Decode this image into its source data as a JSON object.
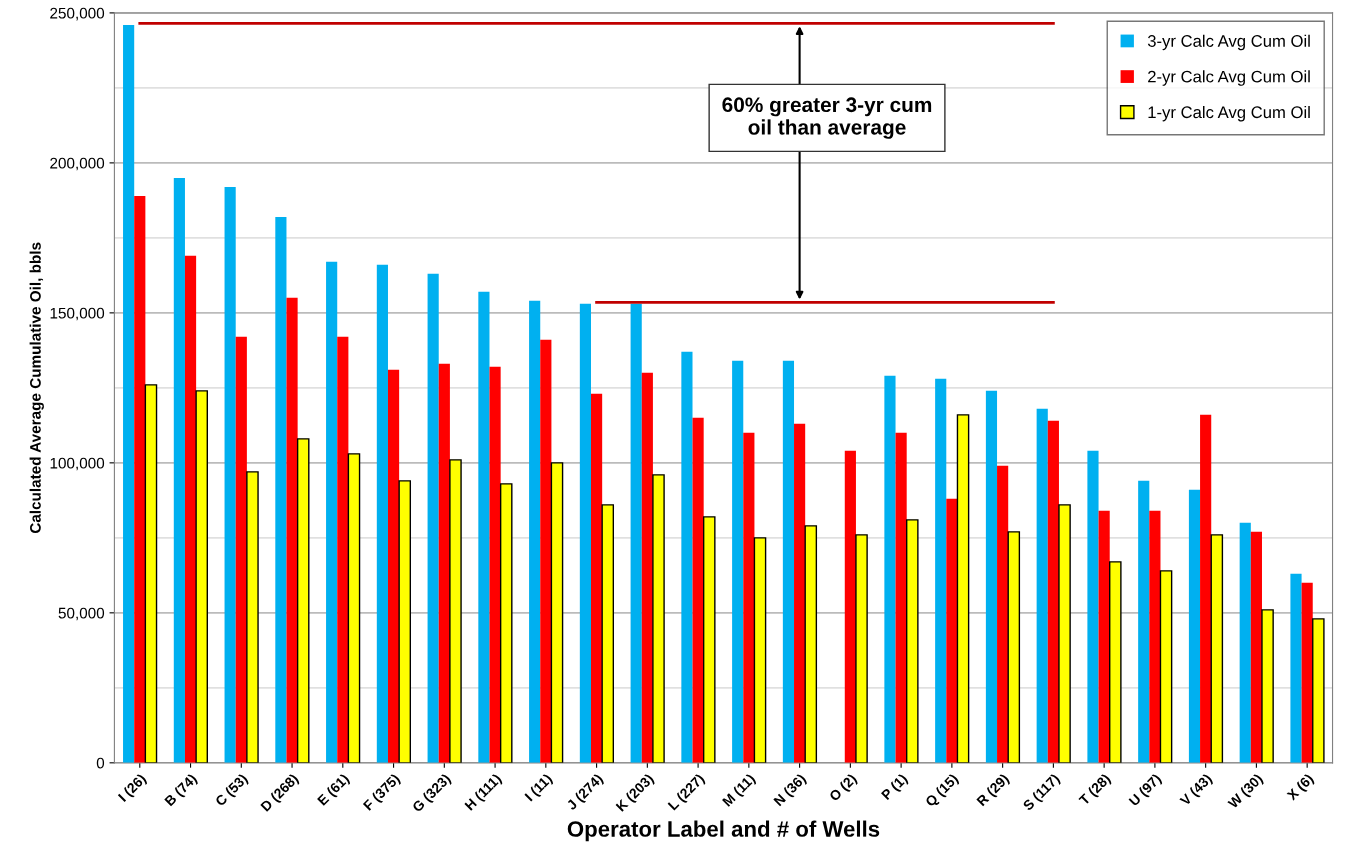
{
  "chart_data": {
    "type": "bar",
    "xlabel": "Operator Label and # of Wells",
    "ylabel": "Calculated Average Cumulative Oil, bbls",
    "categories": [
      "I (26)",
      "B (74)",
      "C (53)",
      "D (268)",
      "E (61)",
      "F (375)",
      "G (323)",
      "H (111)",
      "I (11)",
      "J (274)",
      "K (203)",
      "L (227)",
      "M (11)",
      "N (36)",
      "O (2)",
      "P (1)",
      "Q (15)",
      "R (29)",
      "S (117)",
      "T (28)",
      "U (97)",
      "V (43)",
      "W (30)",
      "X (6)"
    ],
    "series": [
      {
        "name": "3-yr Calc Avg Cum Oil",
        "color": "#00b0f0",
        "values": [
          246000,
          195000,
          192000,
          182000,
          167000,
          166000,
          163000,
          157000,
          154000,
          153000,
          153000,
          137000,
          134000,
          134000,
          null,
          129000,
          128000,
          124000,
          118000,
          104000,
          94000,
          91000,
          80000,
          63000
        ]
      },
      {
        "name": "2-yr Calc Avg Cum Oil",
        "color": "#ff0000",
        "values": [
          189000,
          169000,
          142000,
          155000,
          142000,
          131000,
          133000,
          132000,
          141000,
          123000,
          130000,
          115000,
          110000,
          113000,
          104000,
          110000,
          88000,
          99000,
          114000,
          84000,
          84000,
          116000,
          77000,
          60000
        ]
      },
      {
        "name": "1-yr Calc Avg Cum Oil",
        "color": "#ffff00",
        "values": [
          126000,
          124000,
          97000,
          108000,
          103000,
          94000,
          101000,
          93000,
          100000,
          86000,
          96000,
          82000,
          75000,
          79000,
          76000,
          81000,
          116000,
          77000,
          86000,
          67000,
          64000,
          76000,
          51000,
          48000
        ]
      },
      {
        "type": "line",
        "color": "#c00000",
        "x": [
          "I (26)",
          "S (117)"
        ],
        "values": [
          246500,
          246500
        ]
      },
      {
        "type": "line",
        "color": "#c00000",
        "x": [
          "J (274)",
          "S (117)"
        ],
        "values": [
          153500,
          153500
        ]
      }
    ],
    "annotations": [
      "60% greater 3-yr cum\noil than average"
    ],
    "ylim": [
      0,
      250000
    ],
    "yticks": [
      {
        "value": 0,
        "label": "0"
      },
      {
        "value": 25000,
        "label": null
      },
      {
        "value": 50000,
        "label": "50,000"
      },
      {
        "value": 75000,
        "label": null
      },
      {
        "value": 100000,
        "label": "100,000"
      },
      {
        "value": 125000,
        "label": null
      },
      {
        "value": 150000,
        "label": "150,000"
      },
      {
        "value": 175000,
        "label": null
      },
      {
        "value": 200000,
        "label": "200,000"
      },
      {
        "value": 225000,
        "label": null
      },
      {
        "value": 250000,
        "label": "250,000"
      }
    ],
    "grid": "y",
    "legend": "top right"
  }
}
